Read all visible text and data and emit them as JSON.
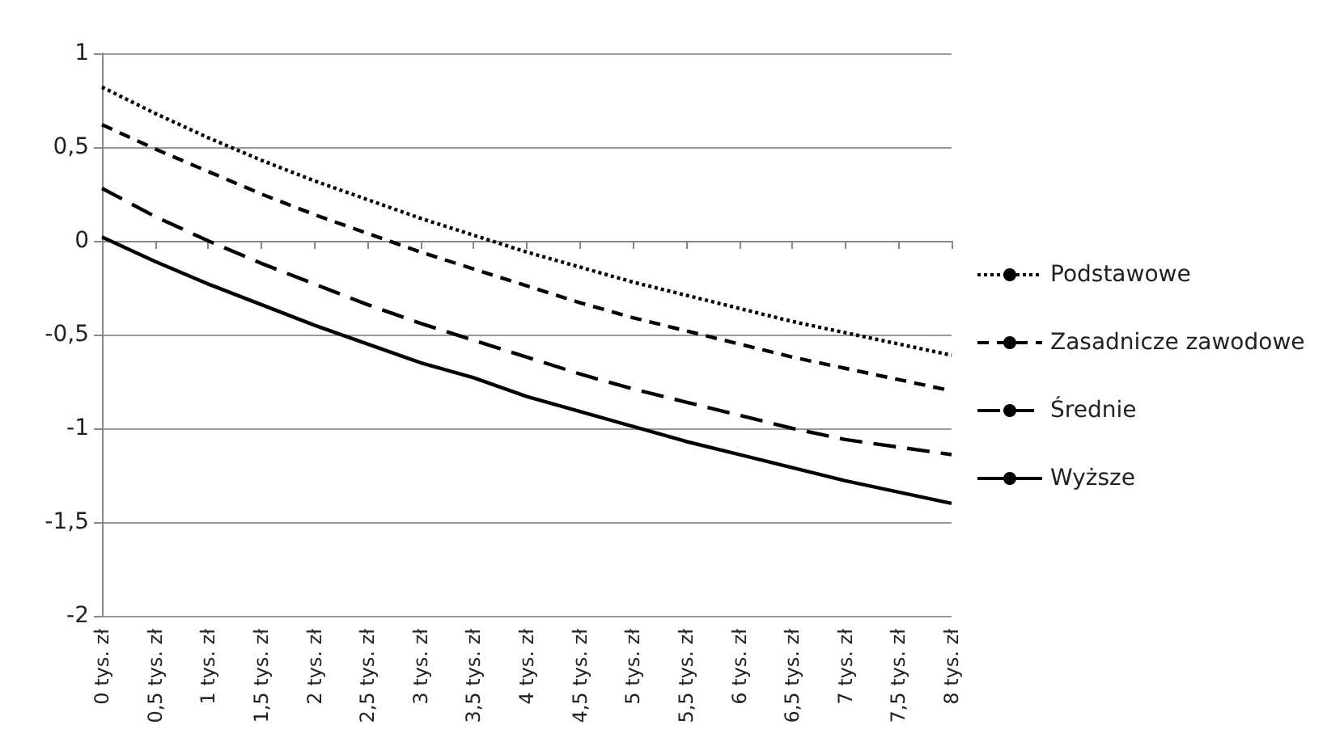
{
  "chart_data": {
    "type": "line",
    "categories": [
      "0 tys. zł",
      "0,5 tys. zł",
      "1 tys. zł",
      "1,5 tys. zł",
      "2 tys. zł",
      "2,5 tys. zł",
      "3 tys. zł",
      "3,5 tys. zł",
      "4 tys. zł",
      "4,5 tys. zł",
      "5 tys. zł",
      "5,5 tys. zł",
      "6 tys. zł",
      "6,5 tys. zł",
      "7 tys. zł",
      "7,5 tys. zł",
      "8 tys. zł"
    ],
    "series": [
      {
        "name": "Podstawowe",
        "color": "#000000",
        "line_style": "dotted",
        "values": [
          0.82,
          0.68,
          0.55,
          0.43,
          0.32,
          0.22,
          0.12,
          0.03,
          -0.06,
          -0.14,
          -0.22,
          -0.29,
          -0.36,
          -0.43,
          -0.49,
          -0.55,
          -0.61
        ]
      },
      {
        "name": "Zasadnicze zawodowe",
        "color": "#000000",
        "line_style": "dashed",
        "values": [
          0.62,
          0.49,
          0.37,
          0.25,
          0.14,
          0.04,
          -0.06,
          -0.15,
          -0.24,
          -0.33,
          -0.41,
          -0.48,
          -0.55,
          -0.62,
          -0.68,
          -0.74,
          -0.8
        ]
      },
      {
        "name": "Średnie",
        "color": "#000000",
        "line_style": "dashed",
        "values": [
          0.28,
          0.13,
          0.0,
          -0.12,
          -0.23,
          -0.34,
          -0.44,
          -0.53,
          -0.62,
          -0.71,
          -0.79,
          -0.86,
          -0.93,
          -1.0,
          -1.06,
          -1.1,
          -1.14
        ]
      },
      {
        "name": "Wyższe",
        "color": "#000000",
        "line_style": "solid",
        "values": [
          0.02,
          -0.11,
          -0.23,
          -0.34,
          -0.45,
          -0.55,
          -0.65,
          -0.73,
          -0.83,
          -0.91,
          -0.99,
          -1.07,
          -1.14,
          -1.21,
          -1.28,
          -1.34,
          -1.4
        ]
      }
    ],
    "ylim": [
      -2,
      1
    ],
    "yticks": [
      -2,
      {
        "value": -1.5,
        "label": "-1,5"
      },
      -1,
      {
        "value": -0.5,
        "label": "-0,5"
      },
      0,
      {
        "value": 0.5,
        "label": "0,5"
      },
      1
    ],
    "grid": "y",
    "legend": "right",
    "marker": "none"
  }
}
